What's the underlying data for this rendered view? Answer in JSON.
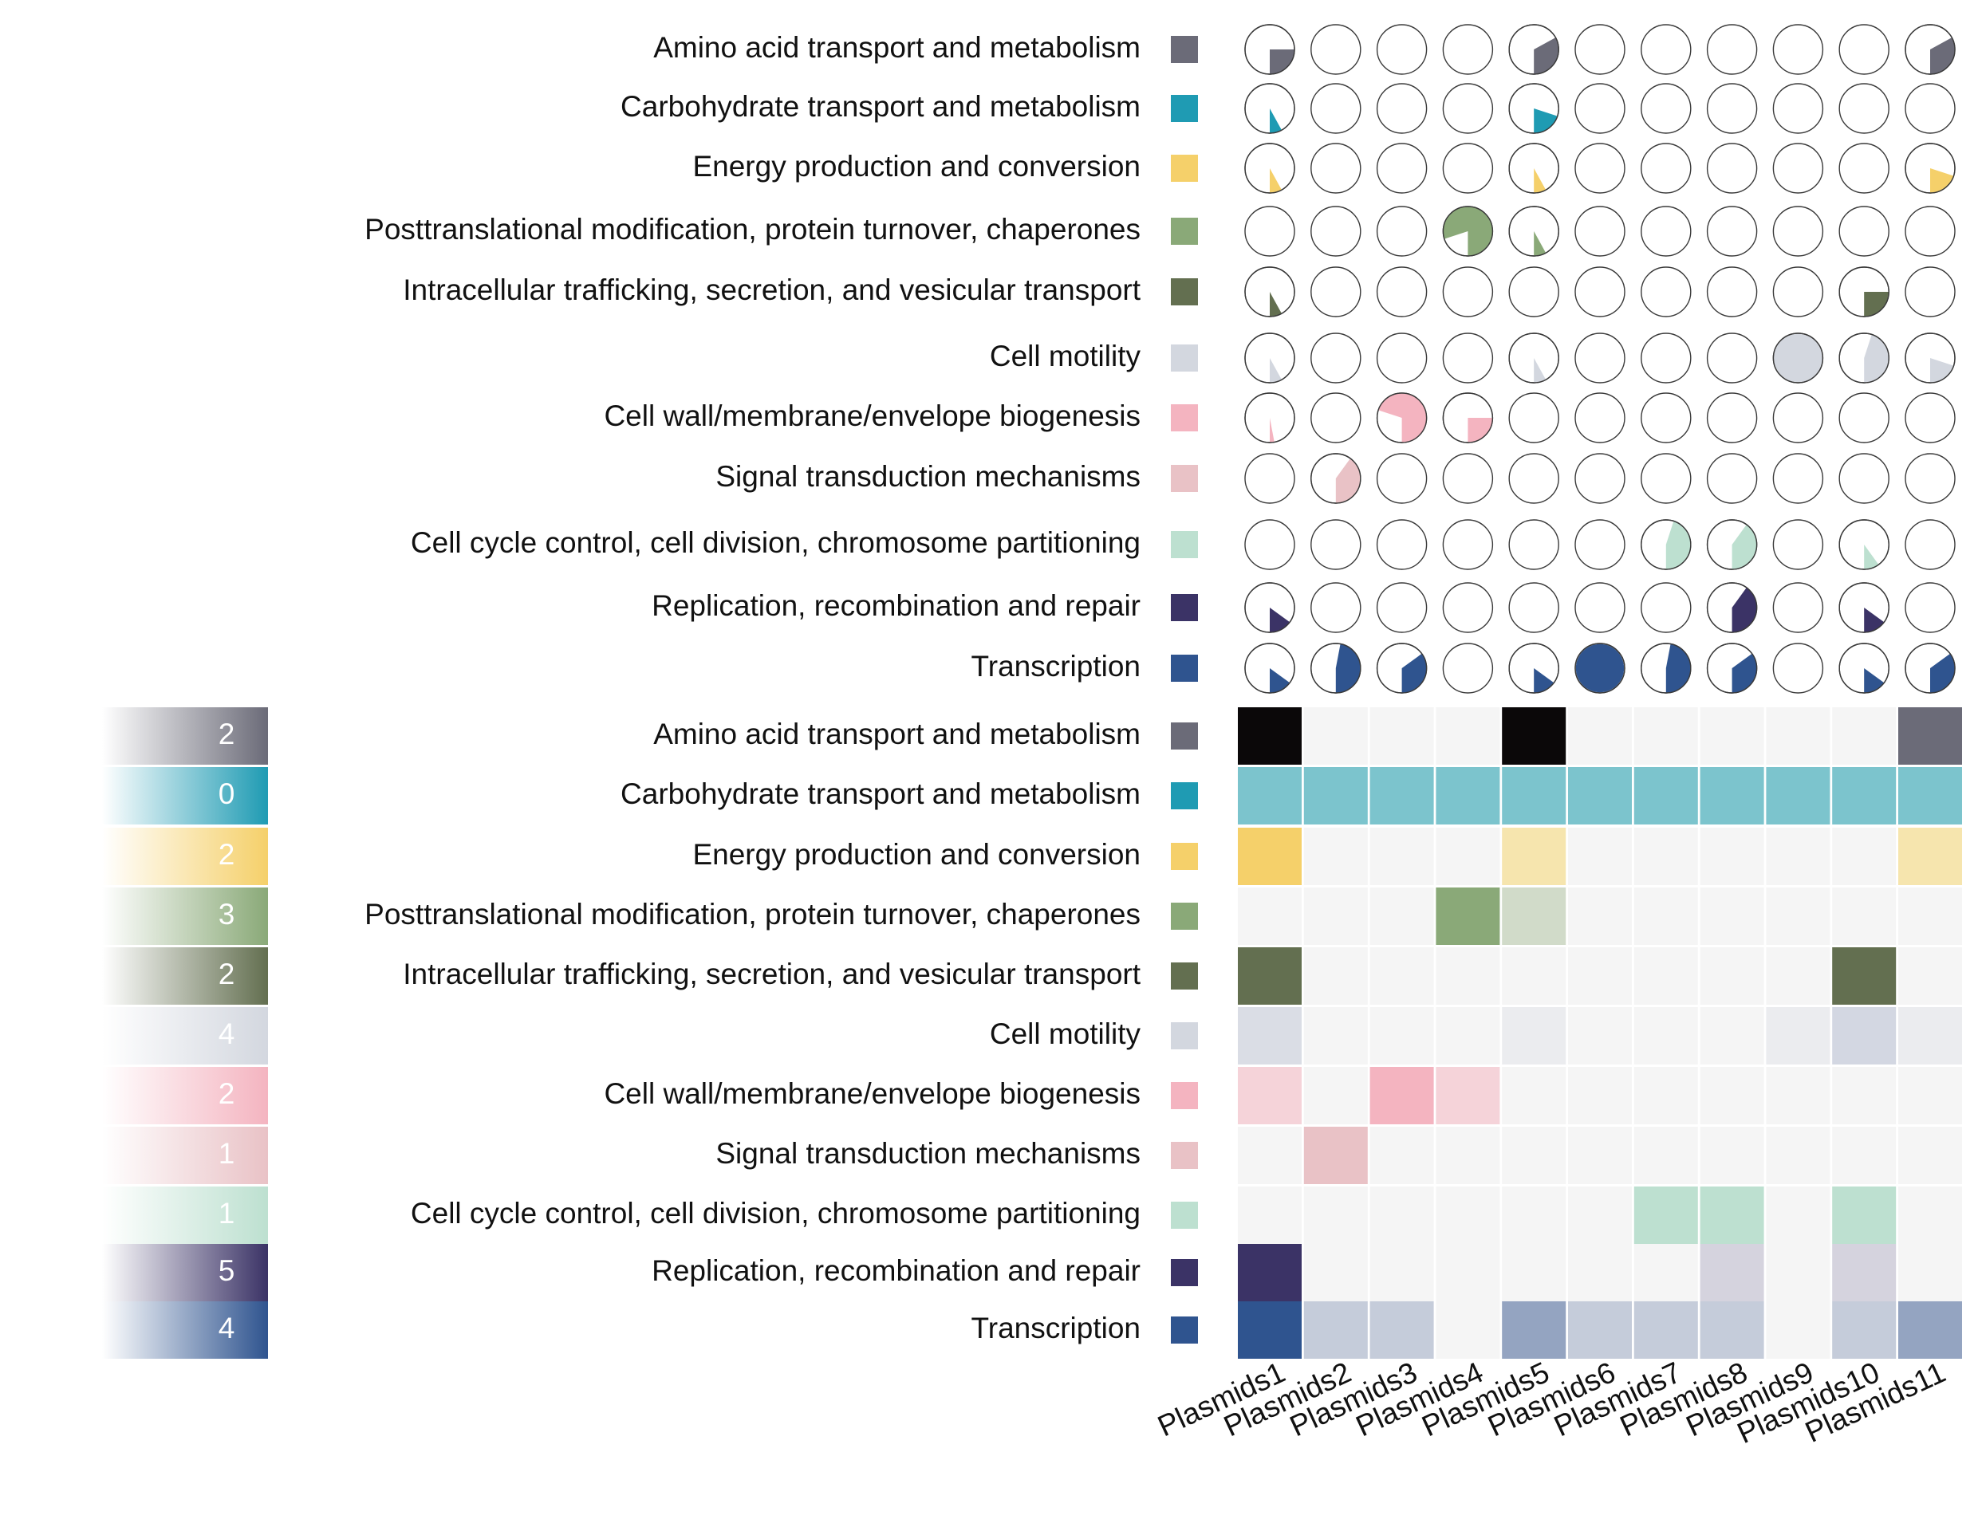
{
  "chart_data": {
    "type": "heatmap",
    "columns": [
      "Plasmids1",
      "Plasmids2",
      "Plasmids3",
      "Plasmids4",
      "Plasmids5",
      "Plasmids6",
      "Plasmids7",
      "Plasmids8",
      "Plasmids9",
      "Plasmids10",
      "Plasmids11"
    ],
    "pie_panel": {
      "type": "pie",
      "rows": [
        {
          "label": "Amino acid transport and metabolism",
          "color": "#6b6b78",
          "fractions": [
            0.25,
            0,
            0,
            0,
            0.33,
            0,
            0,
            0,
            0,
            0,
            0.33
          ]
        },
        {
          "label": "Carbohydrate transport and metabolism",
          "color": "#1f9bb3",
          "fractions": [
            0.08,
            0,
            0,
            0,
            0.2,
            0,
            0,
            0,
            0,
            0,
            0
          ]
        },
        {
          "label": "Energy production and conversion",
          "color": "#f5d06a",
          "fractions": [
            0.08,
            0,
            0,
            0,
            0.08,
            0,
            0,
            0,
            0,
            0,
            0.2
          ]
        },
        {
          "label": "Posttranslational modification, protein turnover, chaperones",
          "color": "#8aa978",
          "fractions": [
            0,
            0,
            0,
            0.8,
            0.08,
            0,
            0,
            0,
            0,
            0,
            0
          ]
        },
        {
          "label": "Intracellular trafficking, secretion, and vesicular transport",
          "color": "#636f50",
          "fractions": [
            0.08,
            0,
            0,
            0,
            0,
            0,
            0,
            0,
            0,
            0.25,
            0
          ]
        },
        {
          "label": "Cell motility",
          "color": "#d3d7df",
          "fractions": [
            0.08,
            0,
            0,
            0,
            0.08,
            0,
            0,
            0,
            1,
            0.45,
            0.2
          ]
        },
        {
          "label": "Cell wall/membrane/envelope biogenesis",
          "color": "#f4b4c0",
          "fractions": [
            0.03,
            0,
            0.7,
            0.25,
            0,
            0,
            0,
            0,
            0,
            0,
            0
          ]
        },
        {
          "label": "Signal transduction mechanisms",
          "color": "#e9c2c6",
          "fractions": [
            0,
            0.4,
            0,
            0,
            0,
            0,
            0,
            0,
            0,
            0,
            0
          ]
        },
        {
          "label": "Cell cycle control, cell division, chromosome partitioning",
          "color": "#bde0d0",
          "fractions": [
            0,
            0,
            0,
            0,
            0,
            0,
            0.45,
            0.4,
            0,
            0.1,
            0
          ]
        },
        {
          "label": "Replication, recombination and repair",
          "color": "#3b3366",
          "fractions": [
            0.15,
            0,
            0,
            0,
            0,
            0,
            0,
            0.4,
            0,
            0.15,
            0
          ]
        },
        {
          "label": "Transcription",
          "color": "#2f548f",
          "fractions": [
            0.15,
            0.47,
            0.35,
            0,
            0.15,
            1,
            0.47,
            0.35,
            0,
            0.15,
            0.35
          ]
        }
      ]
    },
    "heatmap_panel": {
      "type": "heatmap",
      "rows": [
        {
          "label": "Amino acid transport and metabolism",
          "color": "#6b6b78",
          "legend_value": "2",
          "cells": [
            "#0b0809",
            "#f5f5f5",
            "#f5f5f5",
            "#f5f5f5",
            "#0b0809",
            "#f5f5f5",
            "#f5f5f5",
            "#f5f5f5",
            "#f5f5f5",
            "#f5f5f5",
            "#6b6b78"
          ]
        },
        {
          "label": "Carbohydrate transport and metabolism",
          "color": "#1f9bb3",
          "legend_value": "0",
          "cells": [
            "#7cc4cd",
            "#7cc4cd",
            "#7cc4cd",
            "#7cc4cd",
            "#7cc4cd",
            "#7cc4cd",
            "#7cc4cd",
            "#7cc4cd",
            "#7cc4cd",
            "#7cc4cd",
            "#7cc4cd"
          ]
        },
        {
          "label": "Energy production and conversion",
          "color": "#f5d06a",
          "legend_value": "2",
          "cells": [
            "#f5d06a",
            "#f5f5f5",
            "#f5f5f5",
            "#f5f5f5",
            "#f6e5ae",
            "#f5f5f5",
            "#f5f5f5",
            "#f5f5f5",
            "#f5f5f5",
            "#f5f5f5",
            "#f6e5ae"
          ]
        },
        {
          "label": "Posttranslational modification, protein turnover, chaperones",
          "color": "#8aa978",
          "legend_value": "3",
          "cells": [
            "#f5f5f5",
            "#f5f5f5",
            "#f5f5f5",
            "#8aa978",
            "#d1dbc9",
            "#f5f5f5",
            "#f5f5f5",
            "#f5f5f5",
            "#f5f5f5",
            "#f5f5f5",
            "#f5f5f5"
          ]
        },
        {
          "label": "Intracellular trafficking, secretion, and vesicular transport",
          "color": "#636f50",
          "legend_value": "2",
          "cells": [
            "#636f50",
            "#f5f5f5",
            "#f5f5f5",
            "#f5f5f5",
            "#f5f5f5",
            "#f5f5f5",
            "#f5f5f5",
            "#f5f5f5",
            "#f5f5f5",
            "#636f50",
            "#f5f5f5"
          ]
        },
        {
          "label": "Cell motility",
          "color": "#d3d7df",
          "legend_value": "4",
          "cells": [
            "#dadde5",
            "#f5f5f5",
            "#f5f5f5",
            "#f5f5f5",
            "#ebecef",
            "#f5f5f5",
            "#f5f5f5",
            "#f5f5f5",
            "#ebecef",
            "#d3d7e2",
            "#ebecef"
          ]
        },
        {
          "label": "Cell wall/membrane/envelope biogenesis",
          "color": "#f4b4c0",
          "legend_value": "2",
          "cells": [
            "#f5d3d9",
            "#f5f5f5",
            "#f4b4c0",
            "#f5d3d9",
            "#f5f5f5",
            "#f5f5f5",
            "#f5f5f5",
            "#f5f5f5",
            "#f5f5f5",
            "#f5f5f5",
            "#f5f5f5"
          ]
        },
        {
          "label": "Signal transduction mechanisms",
          "color": "#e9c2c6",
          "legend_value": "1",
          "cells": [
            "#f5f5f5",
            "#e9c2c6",
            "#f5f5f5",
            "#f5f5f5",
            "#f5f5f5",
            "#f5f5f5",
            "#f5f5f5",
            "#f5f5f5",
            "#f5f5f5",
            "#f5f5f5",
            "#f5f5f5"
          ]
        },
        {
          "label": "Cell cycle control, cell division, chromosome partitioning",
          "color": "#bde0d0",
          "legend_value": "1",
          "cells": [
            "#f5f5f5",
            "#f5f5f5",
            "#f5f5f5",
            "#f5f5f5",
            "#f5f5f5",
            "#f5f5f5",
            "#bde0d0",
            "#bde0d0",
            "#f5f5f5",
            "#bde0d0",
            "#f5f5f5"
          ]
        },
        {
          "label": "Replication, recombination and repair",
          "color": "#3b3366",
          "legend_value": "5",
          "cells": [
            "#3b3366",
            "#f5f5f5",
            "#f5f5f5",
            "#f5f5f5",
            "#f5f5f5",
            "#f5f5f5",
            "#f5f5f5",
            "#d5d3de",
            "#f5f5f5",
            "#d5d3de",
            "#f5f5f5"
          ]
        },
        {
          "label": "Transcription",
          "color": "#2f548f",
          "legend_value": "4",
          "cells": [
            "#2f548f",
            "#c5ccda",
            "#c5ccda",
            "#f5f5f5",
            "#94a4c1",
            "#c5ccda",
            "#c5ccda",
            "#c5ccda",
            "#f5f5f5",
            "#c5ccda",
            "#94a4c1"
          ]
        }
      ]
    }
  }
}
